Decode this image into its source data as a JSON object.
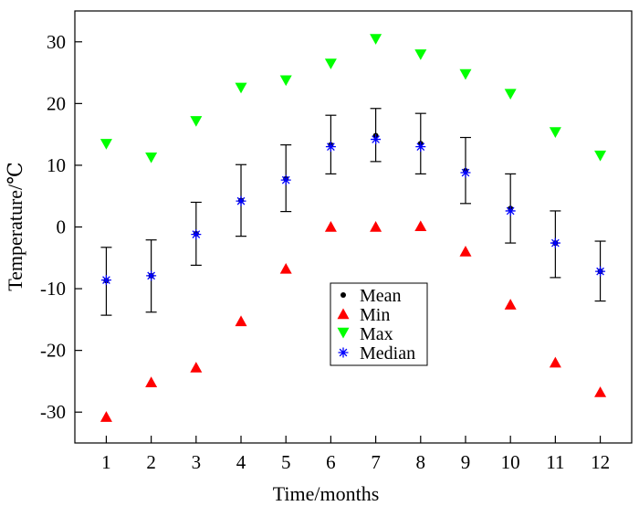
{
  "chart_data": {
    "type": "scatter",
    "xlabel": "Time/months",
    "ylabel": "Temperature/℃",
    "xlim": [
      0.3,
      12.7
    ],
    "ylim": [
      -35,
      35
    ],
    "x": [
      1,
      2,
      3,
      4,
      5,
      6,
      7,
      8,
      9,
      10,
      11,
      12
    ],
    "x_ticks": [
      "1",
      "2",
      "3",
      "4",
      "5",
      "6",
      "7",
      "8",
      "9",
      "10",
      "11",
      "12"
    ],
    "y_ticks": [
      -30,
      -20,
      -10,
      0,
      10,
      20,
      30
    ],
    "y_tick_labels": [
      "-30",
      "-20",
      "-10",
      "0",
      "10",
      "20",
      "30"
    ],
    "series": [
      {
        "name": "Mean",
        "marker": "dot",
        "color": "#000000",
        "values": [
          -8.7,
          -7.9,
          -1.1,
          4.3,
          7.8,
          13.3,
          14.8,
          13.5,
          9.1,
          3.0,
          -2.6,
          -7.2
        ]
      },
      {
        "name": "Min",
        "marker": "triangle-up",
        "color": "#ff0000",
        "values": [
          -30.8,
          -25.2,
          -22.8,
          -15.3,
          -6.8,
          0.0,
          0.0,
          0.1,
          -4.0,
          -12.6,
          -22.0,
          -26.8
        ]
      },
      {
        "name": "Max",
        "marker": "triangle-down",
        "color": "#00ff00",
        "values": [
          13.5,
          11.3,
          17.2,
          22.6,
          23.8,
          26.5,
          30.5,
          28.0,
          24.8,
          21.6,
          15.4,
          11.6
        ]
      },
      {
        "name": "Median",
        "marker": "asterisk",
        "color": "#0000ff",
        "values": [
          -8.6,
          -7.9,
          -1.2,
          4.2,
          7.6,
          13.0,
          14.2,
          13.0,
          8.8,
          2.6,
          -2.6,
          -7.2
        ]
      }
    ],
    "error_bars": {
      "series": "Mean",
      "upper": [
        -3.3,
        -2.1,
        4.0,
        10.1,
        13.3,
        18.1,
        19.2,
        18.4,
        14.5,
        8.6,
        2.6,
        -2.3
      ],
      "lower": [
        -14.3,
        -13.8,
        -6.2,
        -1.5,
        2.5,
        8.6,
        10.6,
        8.6,
        3.8,
        -2.6,
        -8.2,
        -12.0
      ]
    },
    "legend": {
      "position": "center",
      "entries": [
        "Mean",
        "Min",
        "Max",
        "Median"
      ]
    }
  }
}
